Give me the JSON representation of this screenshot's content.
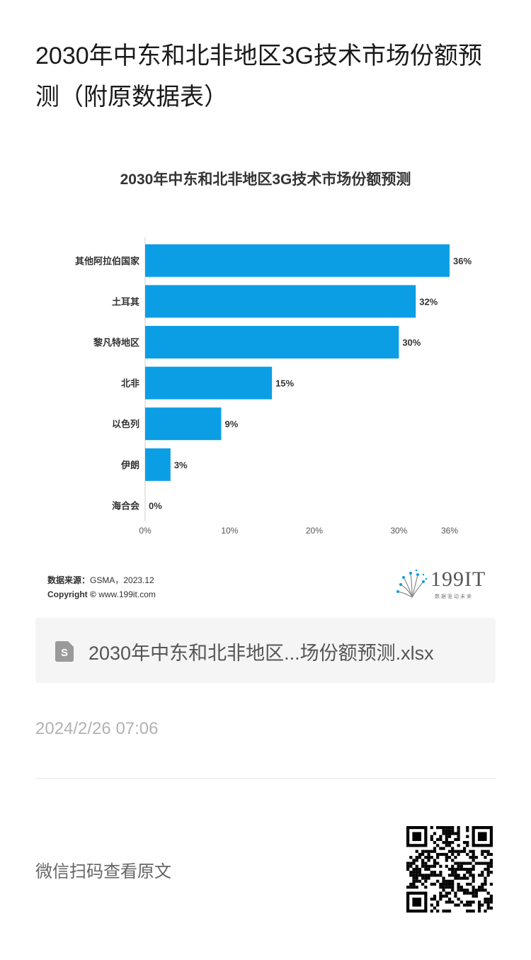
{
  "article": {
    "title": "2030年中东和北非地区3G技术市场份额预测（附原数据表）"
  },
  "chart_data": {
    "type": "bar",
    "orientation": "horizontal",
    "title": "2030年中东和北非地区3G技术市场份额预测",
    "categories": [
      "其他阿拉伯国家",
      "土耳其",
      "黎凡特地区",
      "北非",
      "以色列",
      "伊朗",
      "海合会"
    ],
    "values": [
      36,
      32,
      30,
      15,
      9,
      3,
      0
    ],
    "value_labels": [
      "36%",
      "32%",
      "30%",
      "15%",
      "9%",
      "3%",
      "0%"
    ],
    "xlim": [
      0,
      36
    ],
    "x_ticks": [
      0,
      10,
      20,
      30,
      36
    ],
    "x_tick_labels": [
      "0%",
      "10%",
      "20%",
      "30%",
      "36%"
    ],
    "bar_color": "#0b9ee4",
    "grid": false,
    "legend": "none"
  },
  "source": {
    "label": "数据来源：",
    "value": "GSMA，2023.12",
    "copyright_label": "Copyright ©",
    "copyright_value": "www.199it.com"
  },
  "logo": {
    "text": "199IT",
    "subtitle": "数据驱动未来"
  },
  "file": {
    "icon": "spreadsheet-file-icon",
    "name": "2030年中东和北非地区...场份额预测.xlsx"
  },
  "meta": {
    "date": "2024/2/26 07:06",
    "scan_text": "微信扫码查看原文"
  },
  "colors": {
    "bar": "#0b9ee4",
    "file_card_bg": "#f5f5f5",
    "date": "#b2b2b2"
  }
}
